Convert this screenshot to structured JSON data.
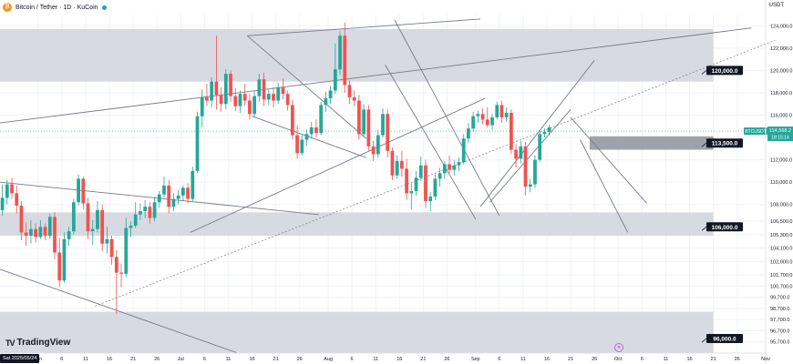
{
  "header": {
    "symbol_title": "Bitcoin / Tether · 1D · KuCoin",
    "currency": "USDT",
    "logo_glyph": "₿",
    "status_color": "#26a69a"
  },
  "branding": {
    "name": "TradingView",
    "icon_text": "TV"
  },
  "footer": {
    "date_tag": "Sat 2025/05/24"
  },
  "colors": {
    "up": "#26a69a",
    "down": "#ef5350",
    "zone": "#d1d4dc",
    "zone_dark": "#9598a1",
    "line": "#787b86",
    "label_bg": "#131722",
    "price_tag": "#26a69a"
  },
  "chart_data": {
    "type": "candlestick",
    "y_axis": {
      "min": 94700,
      "max": 125000,
      "ticks": [
        124000,
        122000,
        120000,
        118000,
        116000,
        114000,
        112000,
        110000,
        108000,
        106500,
        105300,
        104100,
        102900,
        101700,
        100700,
        99700,
        98700,
        97700,
        96700,
        95700
      ]
    },
    "x_axis": {
      "day_min": 0,
      "day_max": 161,
      "ticks": [
        {
          "label": "Jun",
          "day": 8
        },
        {
          "label": "6",
          "day": 13
        },
        {
          "label": "11",
          "day": 18
        },
        {
          "label": "16",
          "day": 23
        },
        {
          "label": "21",
          "day": 28
        },
        {
          "label": "26",
          "day": 33
        },
        {
          "label": "Jul",
          "day": 38
        },
        {
          "label": "6",
          "day": 43
        },
        {
          "label": "11",
          "day": 48
        },
        {
          "label": "16",
          "day": 53
        },
        {
          "label": "21",
          "day": 58
        },
        {
          "label": "26",
          "day": 63
        },
        {
          "label": "Aug",
          "day": 69
        },
        {
          "label": "6",
          "day": 74
        },
        {
          "label": "11",
          "day": 79
        },
        {
          "label": "16",
          "day": 84
        },
        {
          "label": "21",
          "day": 89
        },
        {
          "label": "26",
          "day": 94
        },
        {
          "label": "Sep",
          "day": 100
        },
        {
          "label": "6",
          "day": 105
        },
        {
          "label": "11",
          "day": 110
        },
        {
          "label": "16",
          "day": 115
        },
        {
          "label": "21",
          "day": 120
        },
        {
          "label": "26",
          "day": 125
        },
        {
          "label": "Oct",
          "day": 130
        },
        {
          "label": "6",
          "day": 135
        },
        {
          "label": "11",
          "day": 140
        },
        {
          "label": "16",
          "day": 145
        },
        {
          "label": "21",
          "day": 150
        },
        {
          "label": "26",
          "day": 155
        },
        {
          "label": "Nov",
          "day": 161
        }
      ]
    },
    "series": [
      {
        "o": 107500,
        "h": 109800,
        "l": 107000,
        "c": 108600
      },
      {
        "o": 108600,
        "h": 110200,
        "l": 108000,
        "c": 109800
      },
      {
        "o": 109800,
        "h": 110400,
        "l": 108500,
        "c": 109000
      },
      {
        "o": 109000,
        "h": 109700,
        "l": 107200,
        "c": 107900
      },
      {
        "o": 107900,
        "h": 108300,
        "l": 104800,
        "c": 105500
      },
      {
        "o": 105500,
        "h": 106400,
        "l": 104300,
        "c": 105200
      },
      {
        "o": 105200,
        "h": 106600,
        "l": 104500,
        "c": 105800
      },
      {
        "o": 105800,
        "h": 106300,
        "l": 104600,
        "c": 105100
      },
      {
        "o": 105100,
        "h": 106600,
        "l": 104900,
        "c": 106000
      },
      {
        "o": 106000,
        "h": 106300,
        "l": 104800,
        "c": 105200
      },
      {
        "o": 105200,
        "h": 107200,
        "l": 104900,
        "c": 106900
      },
      {
        "o": 106900,
        "h": 107300,
        "l": 103100,
        "c": 103700
      },
      {
        "o": 103700,
        "h": 105000,
        "l": 100600,
        "c": 101200
      },
      {
        "o": 101200,
        "h": 105500,
        "l": 101000,
        "c": 104900
      },
      {
        "o": 104900,
        "h": 106000,
        "l": 104300,
        "c": 105600
      },
      {
        "o": 105600,
        "h": 108500,
        "l": 105300,
        "c": 108200
      },
      {
        "o": 108200,
        "h": 110700,
        "l": 107900,
        "c": 110300
      },
      {
        "o": 110300,
        "h": 110500,
        "l": 107600,
        "c": 108100
      },
      {
        "o": 108100,
        "h": 108600,
        "l": 104900,
        "c": 105600
      },
      {
        "o": 105600,
        "h": 106600,
        "l": 104400,
        "c": 105800
      },
      {
        "o": 105800,
        "h": 108300,
        "l": 105500,
        "c": 107500
      },
      {
        "o": 107500,
        "h": 108000,
        "l": 103800,
        "c": 104500
      },
      {
        "o": 104500,
        "h": 106000,
        "l": 103600,
        "c": 104900
      },
      {
        "o": 104900,
        "h": 105200,
        "l": 102600,
        "c": 103300
      },
      {
        "o": 103300,
        "h": 103900,
        "l": 98200,
        "c": 101900
      },
      {
        "o": 101900,
        "h": 102700,
        "l": 100600,
        "c": 101800
      },
      {
        "o": 101800,
        "h": 106800,
        "l": 101500,
        "c": 105900
      },
      {
        "o": 105900,
        "h": 106500,
        "l": 105100,
        "c": 106100
      },
      {
        "o": 106100,
        "h": 108200,
        "l": 105900,
        "c": 107100
      },
      {
        "o": 107100,
        "h": 108100,
        "l": 106600,
        "c": 107400
      },
      {
        "o": 107400,
        "h": 108400,
        "l": 106800,
        "c": 107800
      },
      {
        "o": 107800,
        "h": 108200,
        "l": 106300,
        "c": 106800
      },
      {
        "o": 106800,
        "h": 108700,
        "l": 106500,
        "c": 108200
      },
      {
        "o": 108200,
        "h": 109200,
        "l": 107700,
        "c": 108900
      },
      {
        "o": 108900,
        "h": 110500,
        "l": 108600,
        "c": 109700
      },
      {
        "o": 109700,
        "h": 110200,
        "l": 107200,
        "c": 107800
      },
      {
        "o": 107800,
        "h": 109000,
        "l": 107400,
        "c": 108500
      },
      {
        "o": 108500,
        "h": 109300,
        "l": 108000,
        "c": 108800
      },
      {
        "o": 108800,
        "h": 109700,
        "l": 108300,
        "c": 109500
      },
      {
        "o": 109500,
        "h": 109900,
        "l": 108100,
        "c": 108500
      },
      {
        "o": 108500,
        "h": 111400,
        "l": 108300,
        "c": 111000
      },
      {
        "o": 111000,
        "h": 116300,
        "l": 110800,
        "c": 115900
      },
      {
        "o": 115900,
        "h": 118300,
        "l": 114900,
        "c": 117600
      },
      {
        "o": 117600,
        "h": 118800,
        "l": 116800,
        "c": 117300
      },
      {
        "o": 117300,
        "h": 119400,
        "l": 116700,
        "c": 119000
      },
      {
        "o": 119000,
        "h": 123100,
        "l": 116500,
        "c": 117800
      },
      {
        "o": 117800,
        "h": 118500,
        "l": 116300,
        "c": 117000
      },
      {
        "o": 117000,
        "h": 120100,
        "l": 116500,
        "c": 119700
      },
      {
        "o": 119700,
        "h": 120000,
        "l": 117200,
        "c": 117700
      },
      {
        "o": 117700,
        "h": 118400,
        "l": 116400,
        "c": 116800
      },
      {
        "o": 116800,
        "h": 118200,
        "l": 116200,
        "c": 117900
      },
      {
        "o": 117900,
        "h": 118800,
        "l": 116800,
        "c": 117300
      },
      {
        "o": 117300,
        "h": 117900,
        "l": 115600,
        "c": 116100
      },
      {
        "o": 116100,
        "h": 118200,
        "l": 115800,
        "c": 117700
      },
      {
        "o": 117700,
        "h": 119700,
        "l": 117200,
        "c": 119200
      },
      {
        "o": 119200,
        "h": 119800,
        "l": 116800,
        "c": 117400
      },
      {
        "o": 117400,
        "h": 118300,
        "l": 116900,
        "c": 117900
      },
      {
        "o": 117900,
        "h": 118500,
        "l": 116700,
        "c": 117300
      },
      {
        "o": 117300,
        "h": 118900,
        "l": 117000,
        "c": 118500
      },
      {
        "o": 118500,
        "h": 119300,
        "l": 117400,
        "c": 117900
      },
      {
        "o": 117900,
        "h": 118200,
        "l": 116400,
        "c": 116900
      },
      {
        "o": 116900,
        "h": 117400,
        "l": 113800,
        "c": 114200
      },
      {
        "o": 114200,
        "h": 115100,
        "l": 112100,
        "c": 112600
      },
      {
        "o": 112600,
        "h": 114200,
        "l": 112400,
        "c": 113800
      },
      {
        "o": 113800,
        "h": 114700,
        "l": 113300,
        "c": 114300
      },
      {
        "o": 114300,
        "h": 115400,
        "l": 113900,
        "c": 114900
      },
      {
        "o": 114900,
        "h": 115600,
        "l": 114000,
        "c": 114400
      },
      {
        "o": 114400,
        "h": 117200,
        "l": 114200,
        "c": 116900
      },
      {
        "o": 116900,
        "h": 118100,
        "l": 116300,
        "c": 117500
      },
      {
        "o": 117500,
        "h": 118600,
        "l": 117000,
        "c": 118200
      },
      {
        "o": 118200,
        "h": 122400,
        "l": 117900,
        "c": 120100
      },
      {
        "o": 120100,
        "h": 123500,
        "l": 119600,
        "c": 123100
      },
      {
        "o": 123100,
        "h": 124300,
        "l": 118000,
        "c": 118700
      },
      {
        "o": 118700,
        "h": 119100,
        "l": 117000,
        "c": 117600
      },
      {
        "o": 117600,
        "h": 118200,
        "l": 116800,
        "c": 117300
      },
      {
        "o": 117300,
        "h": 117800,
        "l": 113800,
        "c": 114300
      },
      {
        "o": 114300,
        "h": 117000,
        "l": 114100,
        "c": 116500
      },
      {
        "o": 116500,
        "h": 116900,
        "l": 112800,
        "c": 113200
      },
      {
        "o": 113200,
        "h": 113700,
        "l": 111900,
        "c": 112500
      },
      {
        "o": 112500,
        "h": 114700,
        "l": 112200,
        "c": 114200
      },
      {
        "o": 114200,
        "h": 116600,
        "l": 114000,
        "c": 116100
      },
      {
        "o": 116100,
        "h": 116500,
        "l": 112200,
        "c": 112800
      },
      {
        "o": 112800,
        "h": 113100,
        "l": 110200,
        "c": 110600
      },
      {
        "o": 110600,
        "h": 112400,
        "l": 110300,
        "c": 111900
      },
      {
        "o": 111900,
        "h": 112800,
        "l": 110500,
        "c": 111200
      },
      {
        "o": 111200,
        "h": 112100,
        "l": 108400,
        "c": 109000
      },
      {
        "o": 109000,
        "h": 109900,
        "l": 107600,
        "c": 109200
      },
      {
        "o": 109200,
        "h": 111000,
        "l": 108800,
        "c": 110400
      },
      {
        "o": 110400,
        "h": 112300,
        "l": 110100,
        "c": 111500
      },
      {
        "o": 111500,
        "h": 112000,
        "l": 107700,
        "c": 108300
      },
      {
        "o": 108300,
        "h": 109100,
        "l": 107400,
        "c": 108700
      },
      {
        "o": 108700,
        "h": 110700,
        "l": 108400,
        "c": 110300
      },
      {
        "o": 110300,
        "h": 111300,
        "l": 109600,
        "c": 110800
      },
      {
        "o": 110800,
        "h": 111900,
        "l": 110300,
        "c": 111600
      },
      {
        "o": 111600,
        "h": 112400,
        "l": 110800,
        "c": 111100
      },
      {
        "o": 111100,
        "h": 112000,
        "l": 110600,
        "c": 111500
      },
      {
        "o": 111500,
        "h": 112200,
        "l": 111000,
        "c": 111800
      },
      {
        "o": 111800,
        "h": 114300,
        "l": 111600,
        "c": 113900
      },
      {
        "o": 113900,
        "h": 115300,
        "l": 113500,
        "c": 114800
      },
      {
        "o": 114800,
        "h": 116300,
        "l": 114500,
        "c": 115900
      },
      {
        "o": 115900,
        "h": 116400,
        "l": 115300,
        "c": 116100
      },
      {
        "o": 116100,
        "h": 116600,
        "l": 115200,
        "c": 115600
      },
      {
        "o": 115600,
        "h": 116700,
        "l": 114900,
        "c": 115100
      },
      {
        "o": 115100,
        "h": 116100,
        "l": 114700,
        "c": 115800
      },
      {
        "o": 115800,
        "h": 117200,
        "l": 115600,
        "c": 116900
      },
      {
        "o": 116900,
        "h": 117300,
        "l": 115300,
        "c": 115800
      },
      {
        "o": 115800,
        "h": 116700,
        "l": 115400,
        "c": 116200
      },
      {
        "o": 116200,
        "h": 116500,
        "l": 112500,
        "c": 112900
      },
      {
        "o": 112900,
        "h": 113400,
        "l": 111300,
        "c": 112100
      },
      {
        "o": 112100,
        "h": 113700,
        "l": 111700,
        "c": 113200
      },
      {
        "o": 113200,
        "h": 113600,
        "l": 108800,
        "c": 109600
      },
      {
        "o": 109600,
        "h": 110300,
        "l": 109100,
        "c": 109800
      },
      {
        "o": 109800,
        "h": 112400,
        "l": 109500,
        "c": 112000
      },
      {
        "o": 112000,
        "h": 114700,
        "l": 111800,
        "c": 114300
      },
      {
        "o": 114300,
        "h": 114800,
        "l": 114000,
        "c": 114500
      },
      {
        "o": 114500,
        "h": 115100,
        "l": 114200,
        "c": 114900
      }
    ]
  },
  "annotations": {
    "levels": [
      {
        "label": "120,000.0",
        "price": 120000
      },
      {
        "label": "113,500.0",
        "price": 113500
      },
      {
        "label": "106,000.0",
        "price": 106000
      },
      {
        "label": "96,000.0",
        "price": 96000
      }
    ],
    "zones": [
      {
        "name": "zone-122k",
        "from_day": 0,
        "to_day": 150,
        "top": 123700,
        "bottom": 119000
      },
      {
        "name": "zone-106k",
        "from_day": 0,
        "to_day": 150,
        "top": 107300,
        "bottom": 105200
      },
      {
        "name": "zone-97k",
        "from_day": 0,
        "to_day": 150,
        "top": 98400,
        "bottom": 94700
      }
    ],
    "dark_zone": {
      "from_day": 124,
      "to_day": 150,
      "top": 114100,
      "bottom": 112900
    },
    "current_price": {
      "symbol_label": "BTCUSDT",
      "price_label": "114,568.2",
      "timer_label": "18:15:14",
      "price": 114568.2
    },
    "trendlines": [
      {
        "d1": 0,
        "p1": 115300,
        "d2": 158,
        "p2": 123800,
        "style": "solid"
      },
      {
        "d1": 0,
        "p1": 110000,
        "d2": 67,
        "p2": 107100,
        "style": "solid"
      },
      {
        "d1": 0,
        "p1": 102200,
        "d2": 50,
        "p2": 94700,
        "style": "solid"
      },
      {
        "d1": 52,
        "p1": 123100,
        "d2": 101,
        "p2": 124600,
        "style": "solid"
      },
      {
        "d1": 52,
        "p1": 123100,
        "d2": 77,
        "p2": 113900,
        "style": "solid"
      },
      {
        "d1": 53,
        "p1": 115900,
        "d2": 77,
        "p2": 112200,
        "style": "solid"
      },
      {
        "d1": 40,
        "p1": 105500,
        "d2": 102,
        "p2": 117500,
        "style": "solid"
      },
      {
        "d1": 83,
        "p1": 124500,
        "d2": 105,
        "p2": 107000,
        "style": "solid"
      },
      {
        "d1": 81,
        "p1": 120500,
        "d2": 100,
        "p2": 106700,
        "style": "solid"
      },
      {
        "d1": 101,
        "p1": 107800,
        "d2": 125,
        "p2": 120900,
        "style": "solid"
      },
      {
        "d1": 103,
        "p1": 108200,
        "d2": 120,
        "p2": 116500,
        "style": "solid"
      },
      {
        "d1": 122,
        "p1": 113800,
        "d2": 132,
        "p2": 105500,
        "style": "solid"
      },
      {
        "d1": 120,
        "p1": 115800,
        "d2": 136,
        "p2": 108100,
        "style": "solid"
      },
      {
        "d1": 20,
        "p1": 98900,
        "d2": 163,
        "p2": 122700,
        "style": "dashed"
      }
    ]
  }
}
